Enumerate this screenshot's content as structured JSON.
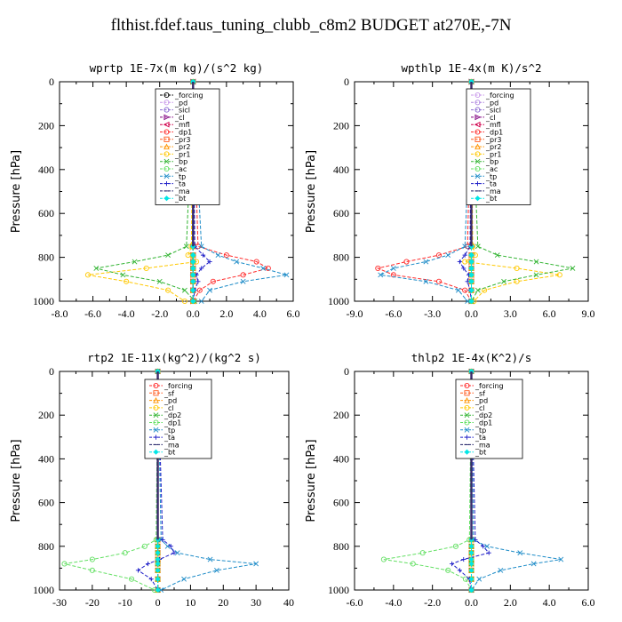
{
  "figure_title": "flthist.fdef.taus_tuning_clubb_c8m2  BUDGET at270E,-7N",
  "chart_data": [
    {
      "type": "line",
      "title": "wprtp  1E-7x(m kg)/(s^2 kg)",
      "ylabel": "Pressure [hPa]",
      "xlim": [
        -8,
        6
      ],
      "xticks": [
        "-8.0",
        "-6.0",
        "-4.0",
        "-2.0",
        "0.0",
        "2.0",
        "4.0",
        "6.0"
      ],
      "ylim": [
        1000,
        0
      ],
      "yticks": [
        "0",
        "200",
        "400",
        "600",
        "800",
        "1000"
      ],
      "legend_position": "top-right",
      "y": [
        0,
        750,
        790,
        820,
        850,
        880,
        910,
        950,
        1000
      ],
      "series": [
        {
          "name": "_forcing",
          "color": "#000000",
          "marker": "o",
          "values": [
            0,
            0,
            0,
            0,
            0,
            0,
            0,
            0,
            0
          ]
        },
        {
          "name": "_pd",
          "color": "#c898ea",
          "marker": "o",
          "values": [
            0,
            0,
            0,
            0,
            0,
            0,
            0,
            0,
            0
          ]
        },
        {
          "name": "_sicl",
          "color": "#8c6cd2",
          "marker": "o",
          "values": [
            0,
            0,
            0,
            0,
            0,
            0,
            0,
            0,
            0
          ]
        },
        {
          "name": "_cl",
          "color": "#800080",
          "marker": ">",
          "values": [
            0,
            0,
            0,
            0,
            0,
            0,
            0,
            0,
            0
          ]
        },
        {
          "name": "_mfl",
          "color": "#d0004c",
          "marker": "<",
          "values": [
            0,
            0,
            0,
            0,
            0,
            0,
            0,
            0,
            0
          ]
        },
        {
          "name": "_dp1",
          "color": "#ff2a2a",
          "marker": "o",
          "values": [
            0,
            0.3,
            2.0,
            3.8,
            4.5,
            3.0,
            1.2,
            0.4,
            0
          ]
        },
        {
          "name": "_pr3",
          "color": "#ff5a1e",
          "marker": "s",
          "values": [
            0,
            0,
            0,
            0,
            0,
            0,
            0,
            0,
            0
          ]
        },
        {
          "name": "_pr2",
          "color": "#ff9400",
          "marker": "^",
          "values": [
            0,
            0,
            0,
            0,
            0,
            0,
            0,
            0,
            0
          ]
        },
        {
          "name": "_pr1",
          "color": "#ffc800",
          "marker": "o",
          "values": [
            0,
            -0.1,
            -0.3,
            0.2,
            -2.8,
            -6.3,
            -4.0,
            -1.5,
            -0.5
          ]
        },
        {
          "name": "_bp",
          "color": "#32b432",
          "marker": "x",
          "values": [
            0,
            -0.4,
            -1.5,
            -3.5,
            -5.8,
            -4.2,
            -2.0,
            -0.5,
            0.1
          ]
        },
        {
          "name": "_ac",
          "color": "#64e064",
          "marker": "o",
          "values": [
            0,
            0,
            0,
            0,
            0,
            0,
            0,
            0,
            0
          ]
        },
        {
          "name": "_tp",
          "color": "#1e8cc8",
          "marker": "x",
          "values": [
            0,
            0.5,
            1.5,
            2.6,
            4.2,
            5.6,
            3.0,
            1.0,
            0.5
          ]
        },
        {
          "name": "_ta",
          "color": "#1e1ec8",
          "marker": "+",
          "values": [
            0,
            0.1,
            0.6,
            1.0,
            0.5,
            0.2,
            0.3,
            0.1,
            0
          ]
        },
        {
          "name": "_ma",
          "color": "#1e1e64",
          "marker": "-",
          "values": [
            0,
            0,
            0,
            0,
            0,
            0,
            0,
            0,
            0
          ]
        },
        {
          "name": "_bt",
          "color": "#00e6e6",
          "marker": "*",
          "values": [
            0,
            0,
            0,
            0,
            0,
            0,
            0,
            0,
            0
          ]
        }
      ]
    },
    {
      "type": "line",
      "title": "wpthlp  1E-4x(m K)/s^2",
      "ylabel": "Pressure [hPa]",
      "xlim": [
        -9,
        9
      ],
      "xticks": [
        "-9.0",
        "-6.0",
        "-3.0",
        "0.0",
        "3.0",
        "6.0",
        "9.0"
      ],
      "ylim": [
        1000,
        0
      ],
      "yticks": [
        "0",
        "200",
        "400",
        "600",
        "800",
        "1000"
      ],
      "legend_position": "top-right",
      "y": [
        0,
        750,
        790,
        820,
        850,
        880,
        910,
        950,
        1000
      ],
      "series": [
        {
          "name": "_forcing",
          "color": "#c898ea",
          "marker": "o",
          "values": [
            0,
            0,
            0,
            0,
            0,
            0,
            0,
            0,
            0
          ]
        },
        {
          "name": "_pd",
          "color": "#b088e0",
          "marker": "o",
          "values": [
            0,
            0,
            0,
            0,
            0,
            0,
            0,
            0,
            0
          ]
        },
        {
          "name": "_sicl",
          "color": "#8c6cd2",
          "marker": "o",
          "values": [
            0,
            0,
            0,
            0,
            0,
            0,
            0,
            0,
            0
          ]
        },
        {
          "name": "_cl",
          "color": "#800080",
          "marker": ">",
          "values": [
            0,
            0,
            0,
            0,
            0,
            0,
            0,
            0,
            0
          ]
        },
        {
          "name": "_mfl",
          "color": "#d0004c",
          "marker": "<",
          "values": [
            0,
            0,
            0,
            0,
            0,
            0,
            0,
            0,
            0
          ]
        },
        {
          "name": "_dp1",
          "color": "#ff2a2a",
          "marker": "o",
          "values": [
            0,
            -0.3,
            -2.5,
            -5.0,
            -7.2,
            -6.0,
            -2.5,
            -0.5,
            0
          ]
        },
        {
          "name": "_pr3",
          "color": "#ff5a1e",
          "marker": "s",
          "values": [
            0,
            0,
            0,
            0,
            0,
            0,
            0,
            0,
            0
          ]
        },
        {
          "name": "_pr2",
          "color": "#ff9400",
          "marker": "^",
          "values": [
            0,
            0,
            0,
            0,
            0,
            0,
            0,
            0,
            0
          ]
        },
        {
          "name": "_pr1",
          "color": "#ffc800",
          "marker": "o",
          "values": [
            0,
            0.1,
            0.3,
            -0.5,
            3.5,
            6.8,
            3.5,
            1.0,
            0.2
          ]
        },
        {
          "name": "_bp",
          "color": "#32b432",
          "marker": "x",
          "values": [
            0,
            0.5,
            2.0,
            5.0,
            7.8,
            5.0,
            2.5,
            0.5,
            0
          ]
        },
        {
          "name": "_ac",
          "color": "#64e064",
          "marker": "o",
          "values": [
            0,
            0,
            0,
            0,
            0,
            0,
            0,
            0,
            0
          ]
        },
        {
          "name": "_tp",
          "color": "#1e8cc8",
          "marker": "x",
          "values": [
            0,
            -0.5,
            -1.8,
            -3.5,
            -6.0,
            -7.0,
            -3.5,
            -1.0,
            -0.3
          ]
        },
        {
          "name": "_ta",
          "color": "#1e1ec8",
          "marker": "+",
          "values": [
            0,
            -0.1,
            -0.5,
            -0.9,
            -0.6,
            -0.2,
            -0.3,
            -0.1,
            0
          ]
        },
        {
          "name": "_ma",
          "color": "#1e1e64",
          "marker": "-",
          "values": [
            0,
            0,
            0,
            0,
            0,
            0,
            0,
            0,
            0
          ]
        },
        {
          "name": "_bt",
          "color": "#00e6e6",
          "marker": "*",
          "values": [
            0,
            0,
            0,
            0,
            0,
            0,
            0,
            0,
            0
          ]
        }
      ]
    },
    {
      "type": "line",
      "title": "rtp2  1E-11x(kg^2)/(kg^2 s)",
      "ylabel": "Pressure [hPa]",
      "xlim": [
        -30,
        40
      ],
      "xticks": [
        "-30",
        "-20",
        "-10",
        "0",
        "10",
        "20",
        "30",
        "40"
      ],
      "ylim": [
        1000,
        0
      ],
      "yticks": [
        "0",
        "200",
        "400",
        "600",
        "800",
        "1000"
      ],
      "legend_position": "top-right",
      "y": [
        0,
        770,
        800,
        830,
        860,
        880,
        910,
        950,
        1000
      ],
      "series": [
        {
          "name": "_forcing",
          "color": "#ff2a2a",
          "marker": "o",
          "values": [
            0,
            0,
            0,
            0,
            0,
            0,
            0,
            0,
            0
          ]
        },
        {
          "name": "_sf",
          "color": "#ff5a1e",
          "marker": "s",
          "values": [
            0,
            0,
            0,
            0,
            0,
            0,
            0,
            0,
            0
          ]
        },
        {
          "name": "_pd",
          "color": "#ff9400",
          "marker": "^",
          "values": [
            0,
            0,
            0,
            0,
            0,
            0,
            0,
            0,
            0
          ]
        },
        {
          "name": "_cl",
          "color": "#ffc800",
          "marker": "o",
          "values": [
            0,
            0,
            0,
            0,
            0,
            0,
            0,
            0,
            0
          ]
        },
        {
          "name": "_dp2",
          "color": "#32b432",
          "marker": "x",
          "values": [
            0,
            0,
            0,
            0,
            0,
            0,
            0,
            0,
            0
          ]
        },
        {
          "name": "_dp1",
          "color": "#64e064",
          "marker": "o",
          "values": [
            0,
            -0.5,
            -4.0,
            -10.0,
            -20.0,
            -28.5,
            -20.0,
            -8.0,
            -1.0
          ]
        },
        {
          "name": "_tp",
          "color": "#1e8cc8",
          "marker": "x",
          "values": [
            0,
            1.0,
            3.0,
            6.0,
            16.0,
            30.0,
            18.0,
            8.0,
            1.0
          ]
        },
        {
          "name": "_ta",
          "color": "#1e1ec8",
          "marker": "+",
          "values": [
            0,
            1.5,
            4.0,
            5.0,
            0.5,
            -3.0,
            -6.0,
            -2.0,
            0
          ]
        },
        {
          "name": "_ma",
          "color": "#1e1e64",
          "marker": "-",
          "values": [
            0,
            0,
            0,
            0,
            0,
            0,
            0,
            0,
            0
          ]
        },
        {
          "name": "_bt",
          "color": "#00e6e6",
          "marker": "*",
          "values": [
            0,
            0,
            0,
            0,
            0,
            0,
            0,
            0,
            0
          ]
        }
      ]
    },
    {
      "type": "line",
      "title": "thlp2  1E-4x(K^2)/s",
      "ylabel": "Pressure [hPa]",
      "xlim": [
        -6,
        6
      ],
      "xticks": [
        "-6.0",
        "-4.0",
        "-2.0",
        "0.0",
        "2.0",
        "4.0",
        "6.0"
      ],
      "ylim": [
        1000,
        0
      ],
      "yticks": [
        "0",
        "200",
        "400",
        "600",
        "800",
        "1000"
      ],
      "legend_position": "top-right",
      "y": [
        0,
        770,
        800,
        830,
        860,
        880,
        910,
        950,
        1000
      ],
      "series": [
        {
          "name": "_forcing",
          "color": "#ff2a2a",
          "marker": "o",
          "values": [
            0,
            0,
            0,
            0,
            0,
            0,
            0,
            0,
            0
          ]
        },
        {
          "name": "_sf",
          "color": "#ff5a1e",
          "marker": "s",
          "values": [
            0,
            0,
            0,
            0,
            0,
            0,
            0,
            0,
            0
          ]
        },
        {
          "name": "_pd",
          "color": "#ff9400",
          "marker": "^",
          "values": [
            0,
            0,
            0,
            0,
            0,
            0,
            0,
            0,
            0
          ]
        },
        {
          "name": "_cl",
          "color": "#ffc800",
          "marker": "o",
          "values": [
            0,
            0,
            0,
            0,
            0,
            0,
            0,
            0,
            0
          ]
        },
        {
          "name": "_dp2",
          "color": "#32b432",
          "marker": "x",
          "values": [
            0,
            0,
            0,
            0,
            0,
            0,
            0,
            0,
            0
          ]
        },
        {
          "name": "_dp1",
          "color": "#64e064",
          "marker": "o",
          "values": [
            0,
            -0.1,
            -0.8,
            -2.5,
            -4.5,
            -3.0,
            -1.2,
            -0.3,
            0
          ]
        },
        {
          "name": "_tp",
          "color": "#1e8cc8",
          "marker": "x",
          "values": [
            0,
            0.1,
            0.8,
            2.5,
            4.6,
            3.2,
            1.5,
            0.4,
            0
          ]
        },
        {
          "name": "_ta",
          "color": "#1e1ec8",
          "marker": "+",
          "values": [
            0,
            0.2,
            0.6,
            0.9,
            -0.4,
            -1.0,
            -0.6,
            -0.1,
            0
          ]
        },
        {
          "name": "_ma",
          "color": "#1e1e64",
          "marker": "-",
          "values": [
            0,
            0,
            0,
            0,
            0,
            0,
            0,
            0,
            0
          ]
        },
        {
          "name": "_bt",
          "color": "#00e6e6",
          "marker": "*",
          "values": [
            0,
            0,
            0,
            0,
            0,
            0,
            0,
            0,
            0
          ]
        }
      ]
    }
  ]
}
